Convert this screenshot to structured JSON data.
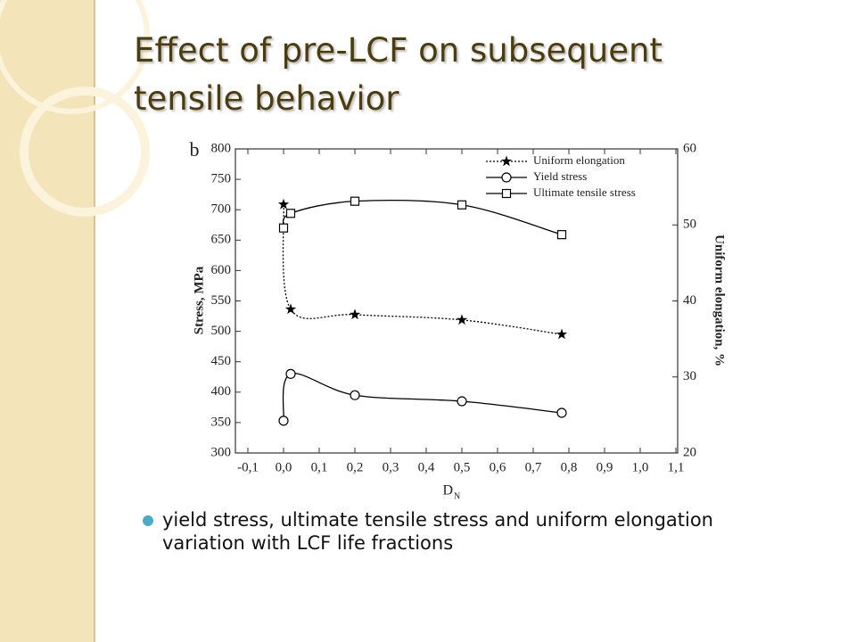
{
  "title": "Effect of pre-LCF on subsequent tensile behavior",
  "bullet": "yield stress, ultimate tensile stress and uniform elongation variation with LCF life fractions",
  "chart_data": {
    "type": "line",
    "panel_label": "b",
    "xlabel": "D",
    "xlabel_sub": "N",
    "ylabel": "Stress, MPa",
    "y2label": "Uniform elongation, %",
    "x": [
      0,
      0.02,
      0.2,
      0.5,
      0.78
    ],
    "series": [
      {
        "name": "Uniform elongation",
        "color": "#000000",
        "marker": "star",
        "dash": "dotted",
        "axis": "y2",
        "values": [
          52.7,
          38.9,
          38.2,
          37.5,
          35.6
        ]
      },
      {
        "name": "Yield stress",
        "color": "#000000",
        "marker": "circle",
        "dash": "solid",
        "values": [
          353,
          430,
          395,
          385,
          366
        ]
      },
      {
        "name": "Ultimate tensile stress",
        "color": "#000000",
        "marker": "square",
        "dash": "solid",
        "values": [
          670,
          694,
          714,
          708,
          659
        ]
      }
    ],
    "xlim": [
      -0.135,
      1.105
    ],
    "xticks": [
      {
        "value": -0.1,
        "label": "-0,1"
      },
      {
        "value": 0,
        "label": "0,0"
      },
      {
        "value": 0.1,
        "label": "0,1"
      },
      {
        "value": 0.2,
        "label": "0,2"
      },
      {
        "value": 0.3,
        "label": "0,3"
      },
      {
        "value": 0.4,
        "label": "0,4"
      },
      {
        "value": 0.5,
        "label": "0,5"
      },
      {
        "value": 0.6,
        "label": "0,6"
      },
      {
        "value": 0.7,
        "label": "0,7"
      },
      {
        "value": 0.8,
        "label": "0,8"
      },
      {
        "value": 0.9,
        "label": "0,9"
      },
      {
        "value": 1,
        "label": "1,0"
      },
      {
        "value": 1.1,
        "label": "1,1"
      }
    ],
    "ylim": [
      300,
      800
    ],
    "yticks": [
      300,
      350,
      400,
      450,
      500,
      550,
      600,
      650,
      700,
      750,
      800
    ],
    "y2lim": [
      20,
      60
    ],
    "y2ticks": [
      20,
      30,
      40,
      50,
      60
    ],
    "legend": "upper right"
  }
}
